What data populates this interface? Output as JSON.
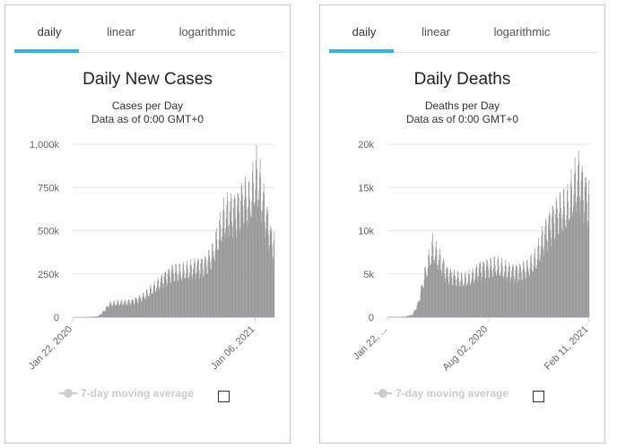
{
  "tabs": [
    "daily",
    "linear",
    "logarithmic"
  ],
  "legend_label": "7-day moving average",
  "colors": {
    "bars": "#999999",
    "tab_accent": "#33b5e5",
    "grid": "#e6e6e6",
    "axis": "#ccd6eb"
  },
  "chart_data": [
    {
      "type": "bar",
      "title": "Daily New Cases",
      "subtitle": "Cases per Day",
      "subtitle2": "Data as of 0:00 GMT+0",
      "x_start": "2020-01-22",
      "x_end": "2021-02-11",
      "ylim": [
        0,
        1000000
      ],
      "yticks": [
        0,
        250000,
        500000,
        750000,
        1000000
      ],
      "ytick_labels": [
        "0",
        "250k",
        "500k",
        "750k",
        "1,000k"
      ],
      "xticks": [
        "2020-01-22",
        "2021-01-06"
      ],
      "xtick_labels": [
        "Jan 22, 2020",
        "Jan 06, 2021"
      ],
      "anchors": [
        [
          "2020-01-22",
          500
        ],
        [
          "2020-02-25",
          2000
        ],
        [
          "2020-03-10",
          5000
        ],
        [
          "2020-03-20",
          30000
        ],
        [
          "2020-04-01",
          75000
        ],
        [
          "2020-04-15",
          80000
        ],
        [
          "2020-05-01",
          85000
        ],
        [
          "2020-05-15",
          90000
        ],
        [
          "2020-06-01",
          110000
        ],
        [
          "2020-06-15",
          140000
        ],
        [
          "2020-07-01",
          180000
        ],
        [
          "2020-07-15",
          225000
        ],
        [
          "2020-08-01",
          260000
        ],
        [
          "2020-08-15",
          255000
        ],
        [
          "2020-09-01",
          265000
        ],
        [
          "2020-09-15",
          290000
        ],
        [
          "2020-10-01",
          300000
        ],
        [
          "2020-10-15",
          350000
        ],
        [
          "2020-10-25",
          440000
        ],
        [
          "2020-11-05",
          550000
        ],
        [
          "2020-11-15",
          600000
        ],
        [
          "2020-12-01",
          610000
        ],
        [
          "2020-12-15",
          680000
        ],
        [
          "2020-12-25",
          650000
        ],
        [
          "2021-01-08",
          800000
        ],
        [
          "2021-01-15",
          740000
        ],
        [
          "2021-01-25",
          600000
        ],
        [
          "2021-02-05",
          450000
        ],
        [
          "2021-02-11",
          420000
        ]
      ],
      "weekly_amplitude": 0.2
    },
    {
      "type": "bar",
      "title": "Daily Deaths",
      "subtitle": "Deaths per Day",
      "subtitle2": "Data as of 0:00 GMT+0",
      "x_start": "2020-01-22",
      "x_end": "2021-02-11",
      "ylim": [
        0,
        20000
      ],
      "yticks": [
        0,
        5000,
        10000,
        15000,
        20000
      ],
      "ytick_labels": [
        "0",
        "5k",
        "10k",
        "15k",
        "20k"
      ],
      "xticks": [
        "2020-01-22",
        "2020-08-02",
        "2021-02-11"
      ],
      "xtick_labels": [
        "Jan 22, ...",
        "Aug 02, 2020",
        "Feb 11, 2021"
      ],
      "anchors": [
        [
          "2020-01-22",
          20
        ],
        [
          "2020-02-25",
          60
        ],
        [
          "2020-03-10",
          300
        ],
        [
          "2020-03-20",
          1500
        ],
        [
          "2020-04-01",
          4500
        ],
        [
          "2020-04-17",
          7800
        ],
        [
          "2020-05-01",
          6500
        ],
        [
          "2020-05-15",
          5000
        ],
        [
          "2020-06-01",
          4500
        ],
        [
          "2020-06-15",
          4200
        ],
        [
          "2020-07-01",
          4500
        ],
        [
          "2020-07-15",
          5500
        ],
        [
          "2020-08-01",
          5700
        ],
        [
          "2020-08-15",
          5800
        ],
        [
          "2020-09-01",
          5400
        ],
        [
          "2020-09-15",
          5200
        ],
        [
          "2020-10-01",
          5300
        ],
        [
          "2020-10-15",
          5500
        ],
        [
          "2020-11-01",
          6500
        ],
        [
          "2020-11-15",
          9000
        ],
        [
          "2020-12-01",
          11000
        ],
        [
          "2020-12-15",
          12000
        ],
        [
          "2021-01-01",
          12500
        ],
        [
          "2021-01-15",
          15000
        ],
        [
          "2021-01-22",
          16000
        ],
        [
          "2021-02-01",
          14500
        ],
        [
          "2021-02-11",
          13500
        ]
      ],
      "weekly_amplitude": 0.2
    }
  ]
}
